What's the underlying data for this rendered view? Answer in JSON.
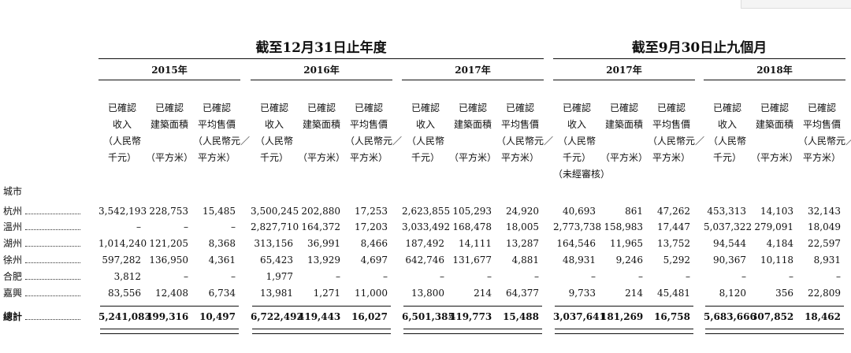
{
  "table": {
    "group_headers": [
      "截至12月31日止年度",
      "截至9月30日止九個月"
    ],
    "years": [
      "2015年",
      "2016年",
      "2017年",
      "2017年",
      "2018年"
    ],
    "column_headers": [
      [
        "已確認",
        "收入",
        "（人民幣",
        "千元）"
      ],
      [
        "已確認",
        "建築面積",
        "",
        "（平方米）"
      ],
      [
        "已確認",
        "平均售價",
        "（人民幣元／",
        "平方米）"
      ],
      [
        "已確認",
        "收入",
        "（人民幣",
        "千元）"
      ],
      [
        "已確認",
        "建築面積",
        "",
        "（平方米）"
      ],
      [
        "已確認",
        "平均售價",
        "（人民幣元／",
        "平方米）"
      ],
      [
        "已確認",
        "收入",
        "（人民幣",
        "千元）"
      ],
      [
        "已確認",
        "建築面積",
        "",
        "（平方米）"
      ],
      [
        "已確認",
        "平均售價",
        "（人民幣元／",
        "平方米）"
      ],
      [
        "已確認",
        "收入",
        "（人民幣",
        "千元）",
        "（未經審核）"
      ],
      [
        "已確認",
        "建築面積",
        "",
        "（平方米）"
      ],
      [
        "已確認",
        "平均售價",
        "（人民幣元／",
        "平方米）"
      ],
      [
        "已確認",
        "收入",
        "（人民幣",
        "千元）"
      ],
      [
        "已確認",
        "建築面積",
        "",
        "（平方米）"
      ],
      [
        "已確認",
        "平均售價",
        "（人民幣元／",
        "平方米）"
      ]
    ],
    "section_label": "城市",
    "rows": [
      {
        "name": "杭州",
        "cells": [
          "3,542,193",
          "228,753",
          "15,485",
          "3,500,245",
          "202,880",
          "17,253",
          "2,623,855",
          "105,293",
          "24,920",
          "40,693",
          "861",
          "47,262",
          "453,313",
          "14,103",
          "32,143"
        ]
      },
      {
        "name": "溫州",
        "cells": [
          "–",
          "–",
          "–",
          "2,827,710",
          "164,372",
          "17,203",
          "3,033,492",
          "168,478",
          "18,005",
          "2,773,738",
          "158,983",
          "17,447",
          "5,037,322",
          "279,091",
          "18,049"
        ]
      },
      {
        "name": "湖州",
        "cells": [
          "1,014,240",
          "121,205",
          "8,368",
          "313,156",
          "36,991",
          "8,466",
          "187,492",
          "14,111",
          "13,287",
          "164,546",
          "11,965",
          "13,752",
          "94,544",
          "4,184",
          "22,597"
        ]
      },
      {
        "name": "徐州",
        "cells": [
          "597,282",
          "136,950",
          "4,361",
          "65,423",
          "13,929",
          "4,697",
          "642,746",
          "131,677",
          "4,881",
          "48,931",
          "9,246",
          "5,292",
          "90,367",
          "10,118",
          "8,931"
        ]
      },
      {
        "name": "合肥",
        "cells": [
          "3,812",
          "–",
          "–",
          "1,977",
          "–",
          "–",
          "–",
          "–",
          "–",
          "–",
          "–",
          "–",
          "–",
          "–",
          "–"
        ]
      },
      {
        "name": "嘉興",
        "cells": [
          "83,556",
          "12,408",
          "6,734",
          "13,981",
          "1,271",
          "11,000",
          "13,800",
          "214",
          "64,377",
          "9,733",
          "214",
          "45,481",
          "8,120",
          "356",
          "22,809"
        ]
      }
    ],
    "total": {
      "name": "總計",
      "cells": [
        "5,241,083",
        "499,316",
        "10,497",
        "6,722,492",
        "419,443",
        "16,027",
        "6,501,385",
        "419,773",
        "15,488",
        "3,037,641",
        "181,269",
        "16,758",
        "5,683,666",
        "307,852",
        "18,462"
      ]
    }
  }
}
